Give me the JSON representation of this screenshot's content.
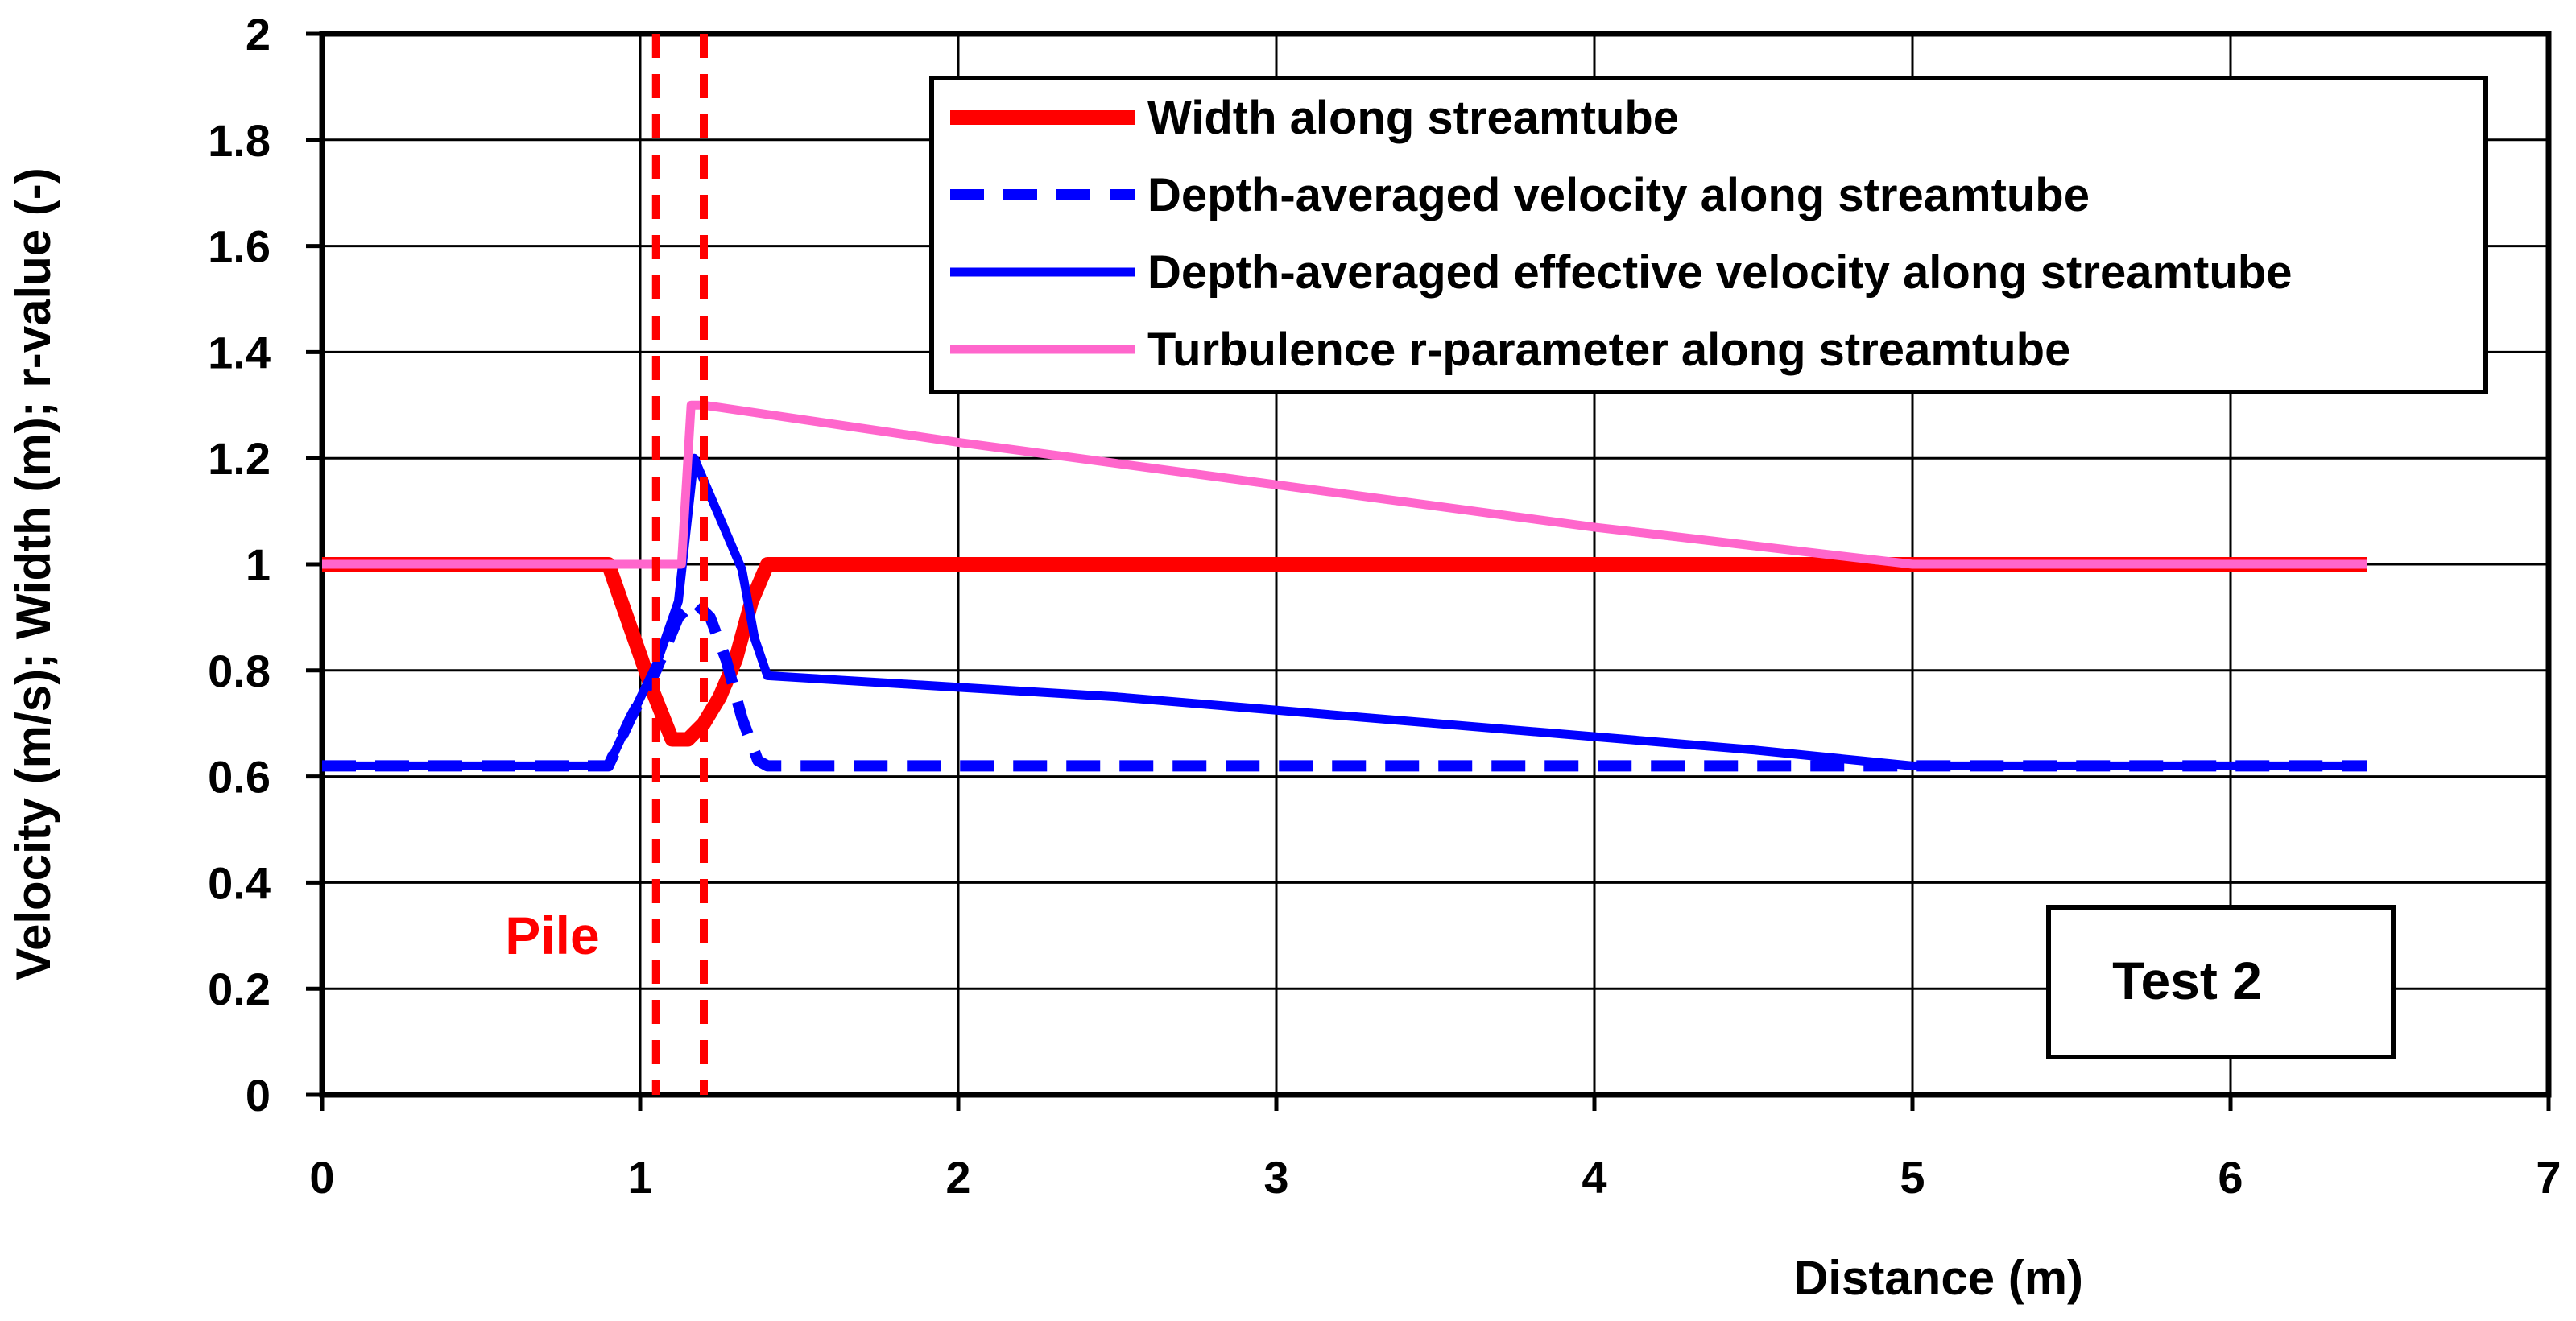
{
  "chart_data": {
    "type": "line",
    "xlabel": "Distance (m)",
    "ylabel": "Velocity (m/s); Width (m); r-value (-)",
    "xlim": [
      0,
      7
    ],
    "ylim": [
      0,
      2
    ],
    "xticks": [
      0,
      1,
      2,
      3,
      4,
      5,
      6,
      7
    ],
    "yticks": [
      0,
      0.2,
      0.4,
      0.6,
      0.8,
      1,
      1.2,
      1.4,
      1.6,
      1.8,
      2
    ],
    "xtick_labels": [
      "0",
      "1",
      "2",
      "3",
      "4",
      "5",
      "6",
      "7"
    ],
    "ytick_labels": [
      "0",
      "0.2",
      "0.4",
      "0.6",
      "0.8",
      "1",
      "1.2",
      "1.4",
      "1.6",
      "1.8",
      "2"
    ],
    "grid": true,
    "legend_position": "top-right",
    "series": [
      {
        "name": "Width along streamtube",
        "color": "#ff0000",
        "style": "solid-thick",
        "x": [
          0,
          0.9,
          0.97,
          1.04,
          1.1,
          1.15,
          1.2,
          1.25,
          1.3,
          1.35,
          1.4,
          6.43
        ],
        "y": [
          1,
          1,
          0.88,
          0.76,
          0.67,
          0.67,
          0.7,
          0.75,
          0.82,
          0.93,
          1,
          1
        ]
      },
      {
        "name": "Depth-averaged velocity along streamtube",
        "color": "#0000ff",
        "style": "dashed",
        "x": [
          0,
          0.9,
          0.97,
          1.05,
          1.12,
          1.17,
          1.22,
          1.27,
          1.32,
          1.37,
          1.4,
          6.43
        ],
        "y": [
          0.62,
          0.62,
          0.71,
          0.8,
          0.9,
          0.93,
          0.9,
          0.82,
          0.71,
          0.63,
          0.62,
          0.62
        ]
      },
      {
        "name": "Depth-averaged effective velocity along streamtube",
        "color": "#0000ff",
        "style": "solid",
        "x": [
          0,
          0.9,
          0.97,
          1.05,
          1.12,
          1.17,
          1.22,
          1.27,
          1.32,
          1.36,
          1.4,
          2.5,
          3.5,
          4.5,
          5.0,
          6.43
        ],
        "y": [
          0.62,
          0.62,
          0.71,
          0.81,
          0.93,
          1.2,
          1.13,
          1.06,
          0.99,
          0.86,
          0.79,
          0.75,
          0.7,
          0.65,
          0.62,
          0.62
        ]
      },
      {
        "name": "Turbulence r-parameter along streamtube",
        "color": "#ff66cc",
        "style": "solid",
        "x": [
          0,
          1.13,
          1.16,
          1.2,
          2.0,
          3.0,
          4.0,
          5.0,
          6.43
        ],
        "y": [
          1,
          1,
          1.3,
          1.3,
          1.23,
          1.15,
          1.07,
          1.0,
          1.0
        ]
      }
    ],
    "reference_lines": [
      {
        "x": 1.05,
        "color": "#ff0000",
        "style": "dashed"
      },
      {
        "x": 1.2,
        "color": "#ff0000",
        "style": "dashed"
      }
    ],
    "annotations": {
      "pile_label": "Pile",
      "test_label": "Test 2"
    }
  }
}
